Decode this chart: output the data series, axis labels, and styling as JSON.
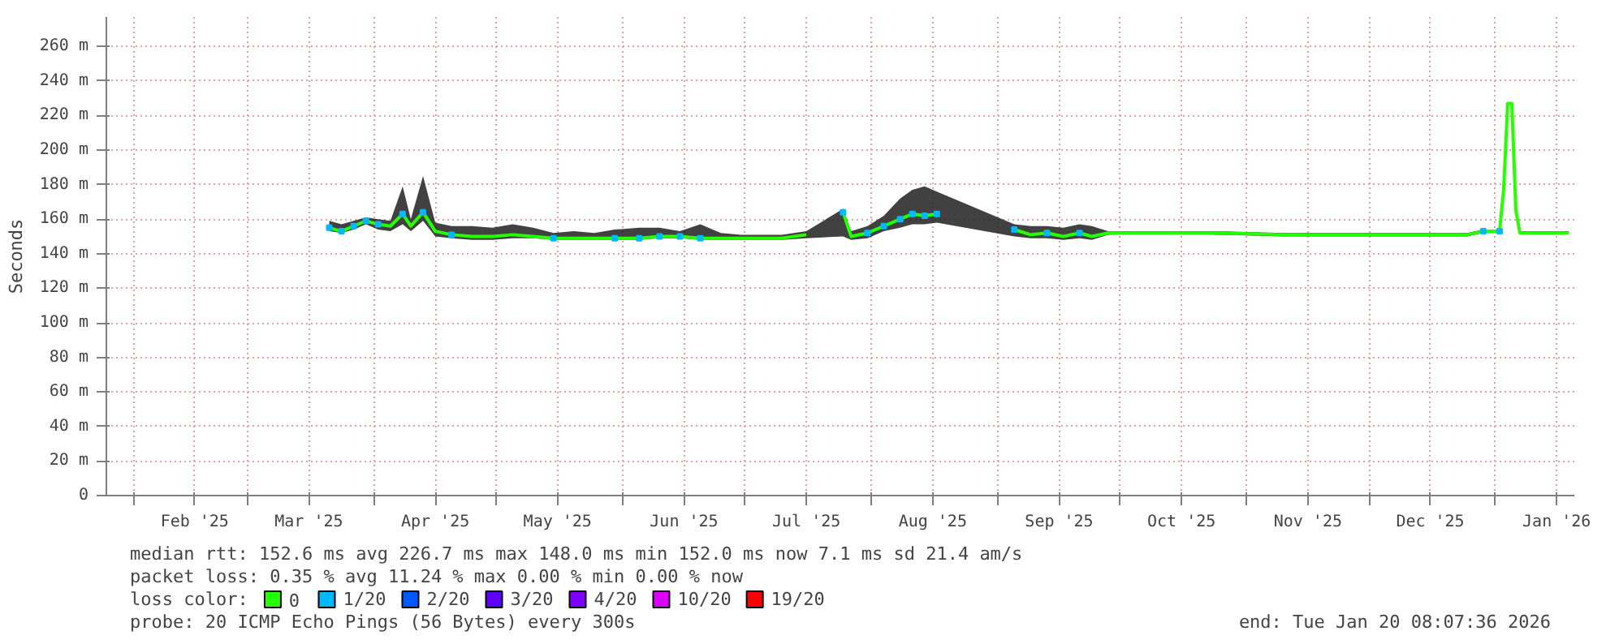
{
  "chart_data": {
    "type": "line",
    "ylabel": "Seconds",
    "legend_title": "loss color:",
    "legend": "bottom",
    "grid": true,
    "xlim": [
      "2025-01-25T08:07",
      "2026-01-20T08:07"
    ],
    "xticks": [
      {
        "value": "2025-02-01",
        "label": null
      },
      {
        "value": "2025-02-16",
        "label": "Feb '25"
      },
      {
        "value": "2025-03-01",
        "label": null
      },
      {
        "value": "2025-03-16",
        "label": "Mar '25"
      },
      {
        "value": "2025-04-01",
        "label": null
      },
      {
        "value": "2025-04-16",
        "label": "Apr '25"
      },
      {
        "value": "2025-05-01",
        "label": null
      },
      {
        "value": "2025-05-16",
        "label": "May '25"
      },
      {
        "value": "2025-06-01",
        "label": null
      },
      {
        "value": "2025-06-16",
        "label": "Jun '25"
      },
      {
        "value": "2025-07-01",
        "label": null
      },
      {
        "value": "2025-07-16",
        "label": "Jul '25"
      },
      {
        "value": "2025-08-01",
        "label": null
      },
      {
        "value": "2025-08-16",
        "label": "Aug '25"
      },
      {
        "value": "2025-09-01",
        "label": null
      },
      {
        "value": "2025-09-16",
        "label": "Sep '25"
      },
      {
        "value": "2025-10-01",
        "label": null
      },
      {
        "value": "2025-10-16",
        "label": "Oct '25"
      },
      {
        "value": "2025-11-01",
        "label": null
      },
      {
        "value": "2025-11-16",
        "label": "Nov '25"
      },
      {
        "value": "2025-12-01",
        "label": null
      },
      {
        "value": "2025-12-16",
        "label": "Dec '25"
      },
      {
        "value": "2026-01-01",
        "label": null
      },
      {
        "value": "2026-01-16",
        "label": "Jan '26"
      }
    ],
    "ylim": [
      0,
      277
    ],
    "yticks": [
      0,
      {
        "value": 20,
        "label": "20 m"
      },
      {
        "value": 40,
        "label": "40 m"
      },
      {
        "value": 60,
        "label": "60 m"
      },
      {
        "value": 80,
        "label": "80 m"
      },
      {
        "value": 100,
        "label": "100 m"
      },
      {
        "value": 120,
        "label": "120 m"
      },
      {
        "value": 140,
        "label": "140 m"
      },
      {
        "value": 160,
        "label": "160 m"
      },
      {
        "value": 180,
        "label": "180 m"
      },
      {
        "value": 200,
        "label": "200 m"
      },
      {
        "value": 220,
        "label": "220 m"
      },
      {
        "value": 240,
        "label": "240 m"
      },
      {
        "value": 260,
        "label": "260 m"
      }
    ],
    "x": [
      "2025-03-21",
      "2025-03-24",
      "2025-03-27",
      "2025-03-30",
      "2025-04-02",
      "2025-04-05",
      "2025-04-08",
      "2025-04-10",
      "2025-04-13",
      "2025-04-16",
      "2025-04-20",
      "2025-04-25",
      "2025-04-30",
      "2025-05-05",
      "2025-05-10",
      "2025-05-15",
      "2025-05-20",
      "2025-05-25",
      "2025-05-30",
      "2025-06-05",
      "2025-06-10",
      "2025-06-15",
      "2025-06-20",
      "2025-06-25",
      "2025-06-30",
      "2025-07-05",
      "2025-07-10",
      "2025-07-16",
      "2025-07-20",
      "2025-07-25",
      "2025-07-27",
      "2025-07-31",
      "2025-08-04",
      "2025-08-08",
      "2025-08-11",
      "2025-08-14",
      "2025-08-17",
      "2025-08-25",
      "2025-09-05",
      "2025-09-09",
      "2025-09-13",
      "2025-09-17",
      "2025-09-21",
      "2025-09-24",
      "2025-09-28",
      "2025-10-10",
      "2025-10-25",
      "2025-11-10",
      "2025-11-25",
      "2025-12-10",
      "2025-12-25",
      "2025-12-29",
      "2026-01-02",
      "2026-01-03",
      "2026-01-04",
      "2026-01-05",
      "2026-01-06",
      "2026-01-07",
      "2026-01-19"
    ],
    "series": [
      {
        "name": "0",
        "color": "#26ff00",
        "values": [
          155,
          153,
          156,
          159,
          157,
          156,
          163,
          156,
          164,
          153,
          151,
          150,
          150,
          151,
          150,
          149,
          149,
          149,
          149,
          149,
          150,
          150,
          149,
          149,
          149,
          149,
          149,
          151,
          null,
          164,
          150,
          152,
          156,
          160,
          163,
          162,
          163,
          null,
          154,
          151,
          152,
          150,
          152,
          150,
          152,
          152,
          152,
          151,
          151,
          151,
          151,
          153,
          153,
          177,
          227,
          227,
          165,
          152,
          152
        ],
        "lower": [
          153,
          152,
          154,
          157,
          154,
          153,
          157,
          153,
          159,
          150,
          149,
          148,
          148,
          149,
          149,
          148,
          148,
          148,
          148,
          148,
          149,
          149,
          148,
          148,
          148,
          148,
          148,
          149,
          null,
          150,
          148,
          149,
          153,
          155,
          157,
          157,
          158,
          null,
          150,
          149,
          149,
          148,
          149,
          148,
          151,
          152,
          151,
          150,
          150,
          150,
          150,
          152,
          152,
          177,
          227,
          227,
          165,
          152,
          152
        ],
        "upper": [
          159,
          157,
          159,
          161,
          160,
          159,
          179,
          160,
          185,
          158,
          156,
          156,
          155,
          157,
          155,
          152,
          153,
          152,
          154,
          155,
          155,
          153,
          157,
          152,
          151,
          151,
          151,
          153,
          null,
          166,
          153,
          156,
          162,
          172,
          177,
          179,
          176,
          null,
          157,
          156,
          156,
          155,
          157,
          156,
          153,
          153,
          153,
          152,
          152,
          152,
          152,
          154,
          154,
          177,
          227,
          227,
          165,
          153,
          153
        ]
      },
      {
        "name": "1/20",
        "color": "#00b8ff",
        "type": "scatter",
        "marker": "square",
        "values": [
          155,
          153,
          156,
          159,
          157,
          null,
          163,
          null,
          164,
          null,
          151,
          null,
          null,
          null,
          null,
          149,
          null,
          null,
          149,
          149,
          150,
          150,
          149,
          null,
          null,
          null,
          null,
          null,
          null,
          164,
          null,
          152,
          156,
          160,
          163,
          162,
          163,
          null,
          154,
          null,
          152,
          null,
          152,
          null,
          null,
          null,
          null,
          null,
          null,
          null,
          null,
          153,
          153,
          null,
          null,
          null,
          null,
          null,
          null
        ]
      },
      {
        "name": "2/20",
        "color": "#0059ff",
        "values": [
          null,
          null,
          null,
          null,
          null,
          null,
          null,
          null,
          null,
          null,
          null,
          null,
          null,
          null,
          null,
          null,
          null,
          null,
          null,
          null,
          null,
          null,
          null,
          null,
          null,
          null,
          null,
          null,
          null,
          null,
          null,
          null,
          null,
          null,
          null,
          null,
          null,
          null,
          null,
          null,
          null,
          null,
          null,
          null,
          null,
          null,
          null,
          null,
          null,
          null,
          null,
          null,
          null,
          null,
          null,
          null,
          null,
          null,
          null
        ]
      },
      {
        "name": "3/20",
        "color": "#5e00ff",
        "values": [
          null,
          null,
          null,
          null,
          null,
          null,
          null,
          null,
          null,
          null,
          null,
          null,
          null,
          null,
          null,
          null,
          null,
          null,
          null,
          null,
          null,
          null,
          null,
          null,
          null,
          null,
          null,
          null,
          null,
          null,
          null,
          null,
          null,
          null,
          null,
          null,
          null,
          null,
          null,
          null,
          null,
          null,
          null,
          null,
          null,
          null,
          null,
          null,
          null,
          null,
          null,
          null,
          null,
          null,
          null,
          null,
          null,
          null,
          null
        ]
      },
      {
        "name": "4/20",
        "color": "#7e00ff",
        "values": [
          null,
          null,
          null,
          null,
          null,
          null,
          null,
          null,
          null,
          null,
          null,
          null,
          null,
          null,
          null,
          null,
          null,
          null,
          null,
          null,
          null,
          null,
          null,
          null,
          null,
          null,
          null,
          null,
          null,
          null,
          null,
          null,
          null,
          null,
          null,
          null,
          null,
          null,
          null,
          null,
          null,
          null,
          null,
          null,
          null,
          null,
          null,
          null,
          null,
          null,
          null,
          null,
          null,
          null,
          null,
          null,
          null,
          null,
          null
        ]
      },
      {
        "name": "10/20",
        "color": "#dd00ff",
        "values": [
          null,
          null,
          null,
          null,
          null,
          null,
          null,
          null,
          null,
          null,
          null,
          null,
          null,
          null,
          null,
          null,
          null,
          null,
          null,
          null,
          null,
          null,
          null,
          null,
          null,
          null,
          null,
          null,
          null,
          null,
          null,
          null,
          null,
          null,
          null,
          null,
          null,
          null,
          null,
          null,
          null,
          null,
          null,
          null,
          null,
          null,
          null,
          null,
          null,
          null,
          null,
          null,
          null,
          null,
          null,
          null,
          null,
          null,
          null
        ]
      },
      {
        "name": "19/20",
        "color": "#ff0000",
        "values": [
          null,
          null,
          null,
          null,
          null,
          null,
          null,
          null,
          null,
          null,
          null,
          null,
          null,
          null,
          null,
          null,
          null,
          null,
          null,
          null,
          null,
          null,
          null,
          null,
          null,
          null,
          null,
          null,
          null,
          null,
          null,
          null,
          null,
          null,
          null,
          null,
          null,
          null,
          null,
          null,
          null,
          null,
          null,
          null,
          null,
          null,
          null,
          null,
          null,
          null,
          null,
          null,
          null,
          null,
          null,
          null,
          null,
          null,
          null
        ]
      }
    ],
    "annotations": [
      "median rtt:  152.6 ms avg  226.7 ms max  148.0 ms min  152.0 ms now  7.1 ms sd  21.4   am/s",
      "packet loss: 0.35 % avg  11.24 % max  0.00 % min  0.00 % now",
      "probe:       20 ICMP Echo Pings (56 Bytes) every 300s",
      "end: Tue Jan 20 08:07:36 2026"
    ]
  }
}
